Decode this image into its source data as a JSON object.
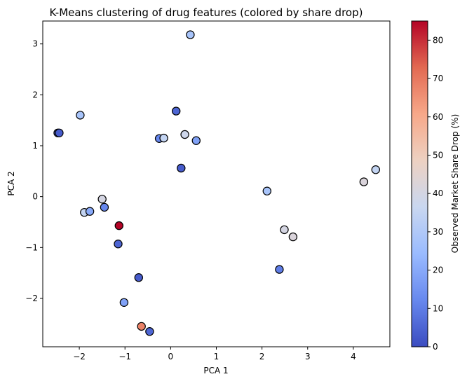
{
  "chart_data": {
    "type": "scatter",
    "title": "K-Means clustering of drug features (colored by share drop)",
    "xlabel": "PCA 1",
    "ylabel": "PCA 2",
    "xlim": [
      -2.8,
      4.8
    ],
    "ylim": [
      -2.95,
      3.45
    ],
    "xticks": [
      -2,
      -1,
      0,
      1,
      2,
      3,
      4
    ],
    "yticks": [
      -2,
      -1,
      0,
      1,
      2,
      3
    ],
    "grid": false,
    "colormap": "coolwarm",
    "colorbar": {
      "label": "Observed Market Share Drop (%)",
      "min": 0,
      "max": 85,
      "ticks": [
        0,
        10,
        20,
        30,
        40,
        50,
        60,
        70,
        80
      ],
      "cmap_stops": [
        "#3b4cc0",
        "#6788ee",
        "#9abbff",
        "#c9d7f0",
        "#edd1c2",
        "#f7a889",
        "#e26952",
        "#b40426"
      ]
    },
    "points": [
      {
        "x": 0.43,
        "y": 3.18,
        "c": 28
      },
      {
        "x": -2.47,
        "y": 1.25,
        "c": 3
      },
      {
        "x": -2.44,
        "y": 1.25,
        "c": 3
      },
      {
        "x": -1.98,
        "y": 1.6,
        "c": 28
      },
      {
        "x": 0.12,
        "y": 1.68,
        "c": 5
      },
      {
        "x": -0.25,
        "y": 1.14,
        "c": 12
      },
      {
        "x": -0.15,
        "y": 1.15,
        "c": 35
      },
      {
        "x": 0.31,
        "y": 1.22,
        "c": 38
      },
      {
        "x": 0.56,
        "y": 1.1,
        "c": 18
      },
      {
        "x": 0.23,
        "y": 0.56,
        "c": 3
      },
      {
        "x": -1.5,
        "y": -0.05,
        "c": 40
      },
      {
        "x": -1.89,
        "y": -0.31,
        "c": 35
      },
      {
        "x": -1.77,
        "y": -0.29,
        "c": 20
      },
      {
        "x": -1.45,
        "y": -0.21,
        "c": 12
      },
      {
        "x": -1.13,
        "y": -0.57,
        "c": 85
      },
      {
        "x": -1.15,
        "y": -0.93,
        "c": 5
      },
      {
        "x": -0.7,
        "y": -1.59,
        "c": 3
      },
      {
        "x": -1.02,
        "y": -2.08,
        "c": 18
      },
      {
        "x": -0.64,
        "y": -2.55,
        "c": 68
      },
      {
        "x": -0.46,
        "y": -2.65,
        "c": 5
      },
      {
        "x": 2.11,
        "y": 0.11,
        "c": 28
      },
      {
        "x": 2.38,
        "y": -1.43,
        "c": 10
      },
      {
        "x": 2.49,
        "y": -0.65,
        "c": 40
      },
      {
        "x": 2.68,
        "y": -0.79,
        "c": 42
      },
      {
        "x": 4.23,
        "y": 0.29,
        "c": 42
      },
      {
        "x": 4.49,
        "y": 0.53,
        "c": 35
      }
    ]
  }
}
